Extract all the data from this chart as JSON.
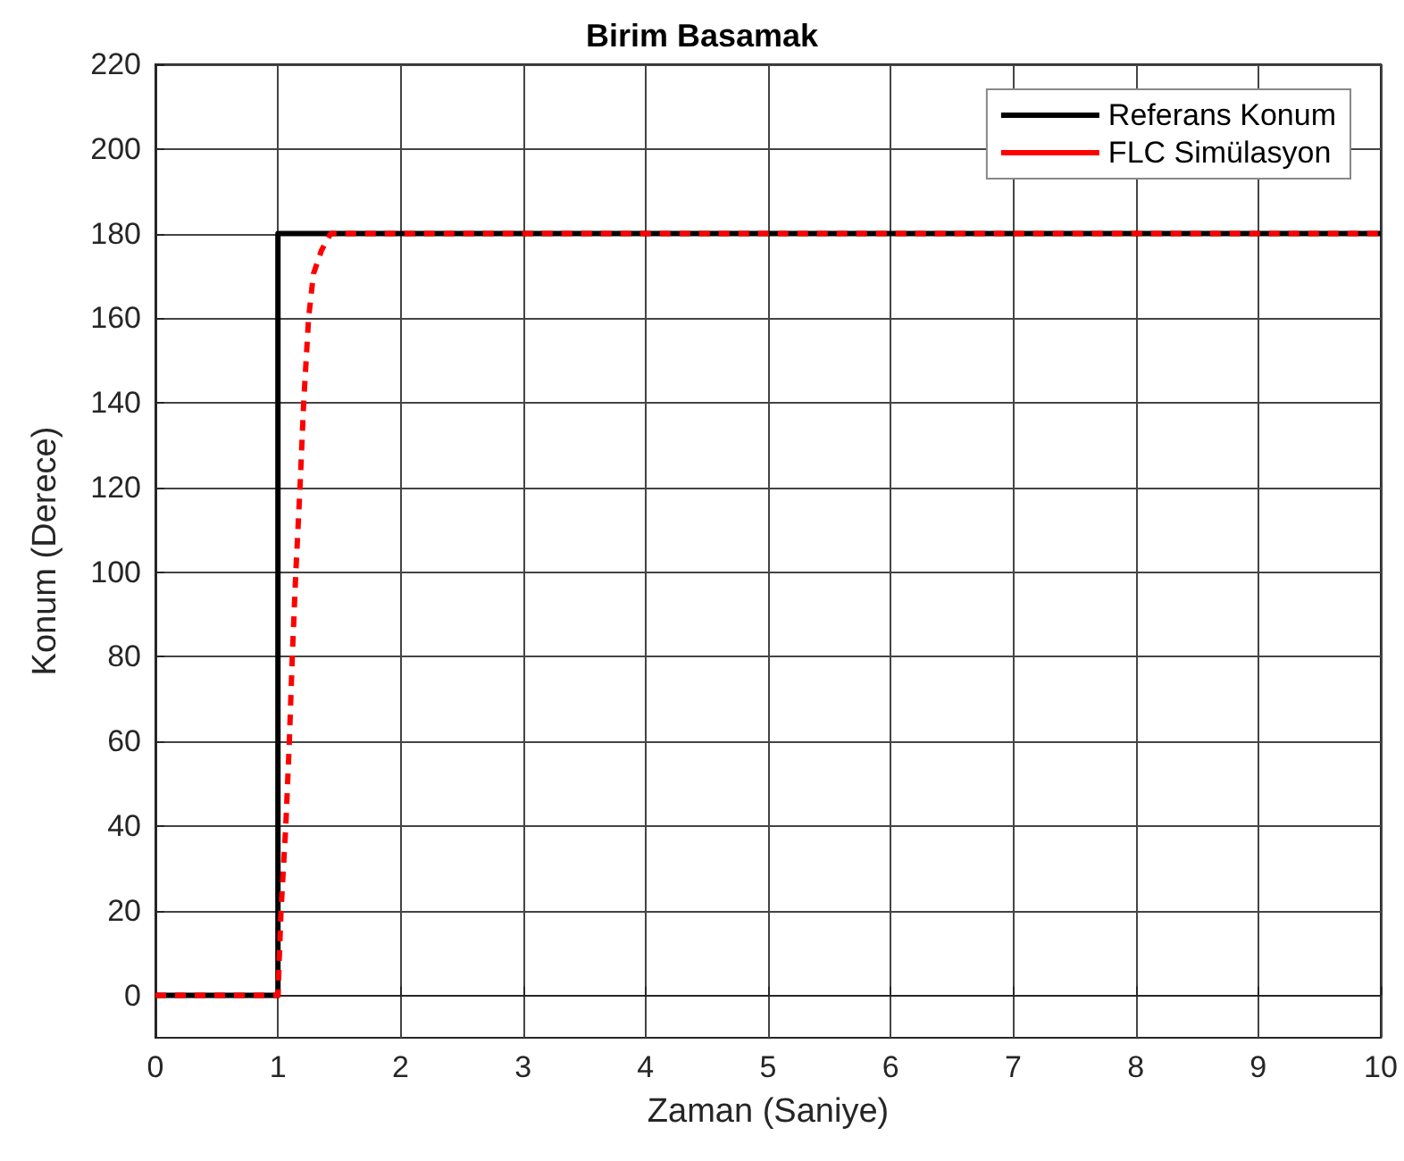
{
  "chart_data": {
    "type": "line",
    "title": "Birim Basamak",
    "xlabel": "Zaman (Saniye)",
    "ylabel": "Konum (Derece)",
    "xlim": [
      0,
      10
    ],
    "xticks": [
      0,
      1,
      2,
      3,
      4,
      5,
      6,
      7,
      8,
      9,
      10
    ],
    "ylim": [
      -10,
      220
    ],
    "yticks": [
      0,
      20,
      40,
      60,
      80,
      100,
      120,
      140,
      160,
      180,
      200,
      220
    ],
    "grid": true,
    "legend": "top right",
    "marker": "none",
    "series": [
      {
        "name": "Referans Konum",
        "color": "#000000",
        "line_style": "solid",
        "x": [
          0,
          1,
          1,
          10
        ],
        "values": [
          0,
          0,
          180,
          180
        ]
      },
      {
        "name": "FLC Simülasyon",
        "color": "#ff0000",
        "line_style": "dashed",
        "x": [
          0,
          1.0,
          1.025,
          1.064,
          1.093,
          1.117,
          1.146,
          1.18,
          1.21,
          1.25,
          1.29,
          1.355,
          1.43,
          10
        ],
        "values": [
          0,
          0,
          20,
          40,
          60,
          80,
          100,
          120,
          140,
          160,
          170.5,
          176,
          180,
          180
        ]
      }
    ]
  }
}
